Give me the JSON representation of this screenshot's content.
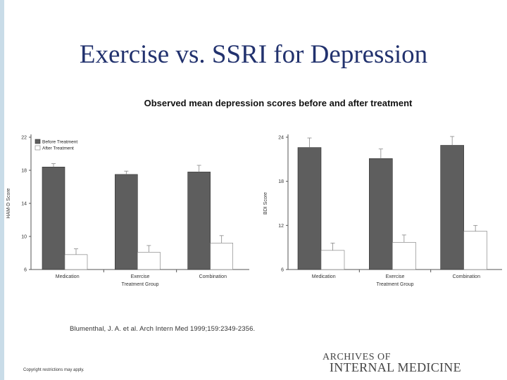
{
  "slide": {
    "title": "Exercise vs. SSRI for Depression",
    "subtitle": "Observed mean depression scores before and after treatment",
    "citation": "Blumenthal, J. A. et al. Arch Intern Med 1999;159:2349-2356.",
    "copyright": "Copyright restrictions may apply.",
    "journal_line1": "ARCHIVES OF",
    "journal_line2": "INTERNAL MEDICINE"
  },
  "colors": {
    "title": "#22326e",
    "before_bar": "#5e5e5e",
    "after_bar": "#ffffff",
    "left_panel_bar": "#c9dce8"
  },
  "chart_data": [
    {
      "type": "bar",
      "categories": [
        "Medication",
        "Exercise",
        "Combination"
      ],
      "xlabel": "Treatment Group",
      "ylabel": "HAM-D Score",
      "ylim": [
        6,
        22
      ],
      "yticks": [
        6,
        10,
        14,
        18,
        22
      ],
      "legend": [
        "Before Treatment",
        "After Treatment"
      ],
      "legend_position": "top-left",
      "series": [
        {
          "name": "Before Treatment",
          "values": [
            18.4,
            17.5,
            17.8
          ],
          "errors": [
            0.4,
            0.4,
            0.8
          ]
        },
        {
          "name": "After Treatment",
          "values": [
            7.8,
            8.1,
            9.2
          ],
          "errors": [
            0.7,
            0.8,
            0.9
          ]
        }
      ]
    },
    {
      "type": "bar",
      "categories": [
        "Medication",
        "Exercise",
        "Combination"
      ],
      "xlabel": "Treatment Group",
      "ylabel": "BDI Score",
      "ylim": [
        6,
        24
      ],
      "yticks": [
        6,
        12,
        18,
        24
      ],
      "legend": [],
      "series": [
        {
          "name": "Before Treatment",
          "values": [
            22.6,
            21.1,
            22.9
          ],
          "errors": [
            1.3,
            1.3,
            1.2
          ]
        },
        {
          "name": "After Treatment",
          "values": [
            8.6,
            9.7,
            11.2
          ],
          "errors": [
            1.0,
            1.0,
            0.8
          ]
        }
      ]
    }
  ]
}
